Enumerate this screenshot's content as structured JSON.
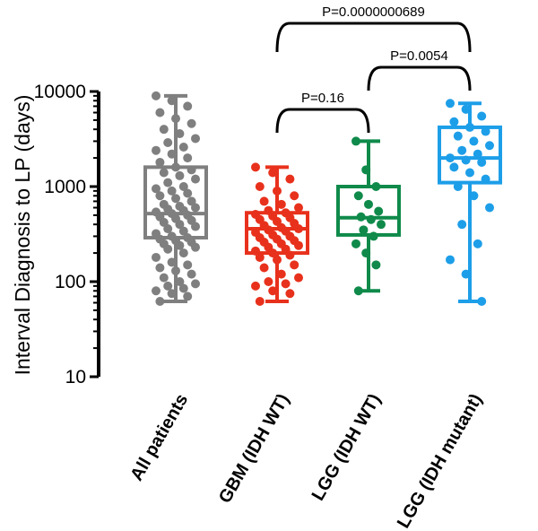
{
  "chart_data": {
    "type": "box",
    "ylabel": "Interval Diagnosis to LP (days)",
    "yscale": "log",
    "ylim": [
      10,
      10000
    ],
    "yticks": [
      {
        "value": 10,
        "label": "10"
      },
      {
        "value": 100,
        "label": "100"
      },
      {
        "value": 1000,
        "label": "1000"
      },
      {
        "value": 10000,
        "label": "10000"
      }
    ],
    "categories": [
      "All patients",
      "GBM (IDH WT)",
      "LGG (IDH WT)",
      "LGG (IDH mutant)"
    ],
    "colors": [
      "#7f7f7f",
      "#e8311c",
      "#0f8a4a",
      "#1d9ee8"
    ],
    "series": [
      {
        "min": 62,
        "q1": 290,
        "median": 520,
        "q3": 1600,
        "max": 9000,
        "points": [
          9000,
          8000,
          7000,
          6000,
          5200,
          4600,
          4000,
          3600,
          3200,
          2900,
          2600,
          2400,
          2200,
          2000,
          1800,
          1600,
          1500,
          1400,
          1300,
          1200,
          1100,
          1000,
          950,
          900,
          850,
          800,
          750,
          700,
          650,
          620,
          600,
          580,
          560,
          540,
          520,
          500,
          480,
          460,
          440,
          420,
          400,
          380,
          360,
          340,
          320,
          300,
          290,
          280,
          270,
          260,
          250,
          240,
          230,
          220,
          200,
          180,
          160,
          150,
          140,
          130,
          120,
          110,
          100,
          95,
          90,
          85,
          80,
          75,
          70,
          62
        ]
      },
      {
        "min": 62,
        "q1": 200,
        "median": 360,
        "q3": 530,
        "max": 1600,
        "points": [
          1600,
          1400,
          1200,
          1000,
          900,
          800,
          700,
          650,
          600,
          560,
          530,
          510,
          490,
          470,
          450,
          430,
          410,
          390,
          370,
          360,
          350,
          340,
          330,
          310,
          300,
          290,
          280,
          270,
          260,
          250,
          240,
          230,
          220,
          210,
          200,
          190,
          180,
          170,
          150,
          140,
          120,
          110,
          100,
          95,
          90,
          80,
          75,
          62
        ]
      },
      {
        "min": 80,
        "q1": 310,
        "median": 470,
        "q3": 1000,
        "max": 3000,
        "points": [
          3000,
          1500,
          1000,
          800,
          650,
          550,
          480,
          450,
          400,
          350,
          300,
          250,
          200,
          150,
          80
        ]
      },
      {
        "min": 62,
        "q1": 1100,
        "median": 2000,
        "q3": 4200,
        "max": 7500,
        "points": [
          7500,
          6500,
          5500,
          4800,
          4200,
          3800,
          3400,
          3000,
          2700,
          2400,
          2200,
          2000,
          1900,
          1800,
          1600,
          1400,
          1200,
          1000,
          800,
          600,
          400,
          250,
          170,
          120,
          62
        ]
      }
    ],
    "comparisons": [
      {
        "from": 1,
        "to": 2,
        "label": "P=0.16"
      },
      {
        "from": 2,
        "to": 3,
        "label": "P=0.0054"
      },
      {
        "from": 1,
        "to": 3,
        "label": "P=0.0000000689"
      }
    ]
  }
}
